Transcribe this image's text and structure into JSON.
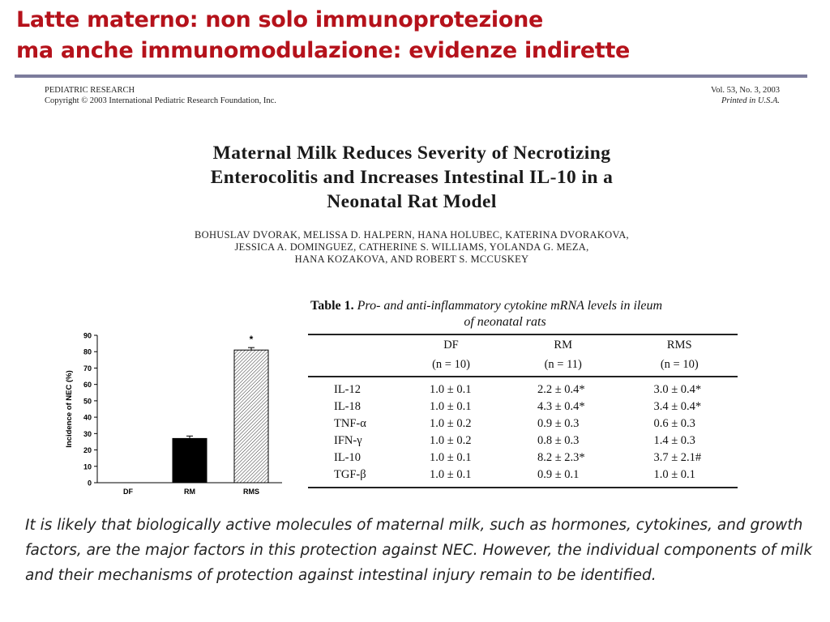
{
  "slide": {
    "title_line1": "Latte materno: non solo immunoprotezione",
    "title_line2": "ma anche immunomodulazione: evidenze indirette"
  },
  "journal": {
    "name": "PEDIATRIC RESEARCH",
    "copyright": "Copyright © 2003 International Pediatric Research Foundation, Inc.",
    "volume": "Vol. 53, No. 3, 2003",
    "printed": "Printed in U.S.A."
  },
  "paper": {
    "title_line1": "Maternal Milk Reduces Severity of Necrotizing",
    "title_line2": "Enterocolitis and Increases Intestinal IL-10 in a",
    "title_line3": "Neonatal Rat Model",
    "authors_line1": "BOHUSLAV DVORAK, MELISSA D. HALPERN, HANA HOLUBEC, KATERINA DVORAKOVA,",
    "authors_line2": "JESSICA A. DOMINGUEZ, CATHERINE S. WILLIAMS, YOLANDA G. MEZA,",
    "authors_line3": "HANA KOZAKOVA, AND ROBERT S. MCCUSKEY"
  },
  "table": {
    "label": "Table 1.",
    "caption_line1": "Pro- and anti-inflammatory cytokine mRNA levels in ileum",
    "caption_line2": "of neonatal rats",
    "columns": [
      {
        "name": "DF",
        "n": "(n = 10)"
      },
      {
        "name": "RM",
        "n": "(n = 11)"
      },
      {
        "name": "RMS",
        "n": "(n = 10)"
      }
    ],
    "rows": [
      {
        "label": "IL-12",
        "df": "1.0 ± 0.1",
        "rm": "2.2 ± 0.4*",
        "rms": "3.0 ± 0.4*"
      },
      {
        "label": "IL-18",
        "df": "1.0 ± 0.1",
        "rm": "4.3 ± 0.4*",
        "rms": "3.4 ± 0.4*"
      },
      {
        "label": "TNF-α",
        "df": "1.0 ± 0.2",
        "rm": "0.9 ± 0.3",
        "rms": "0.6 ± 0.3"
      },
      {
        "label": "IFN-γ",
        "df": "1.0 ± 0.2",
        "rm": "0.8 ± 0.3",
        "rms": "1.4 ± 0.3"
      },
      {
        "label": "IL-10",
        "df": "1.0 ± 0.1",
        "rm": "8.2 ± 2.3*",
        "rms": "3.7 ± 2.1#"
      },
      {
        "label": "TGF-β",
        "df": "1.0 ± 0.1",
        "rm": "0.9 ± 0.1",
        "rms": "1.0 ± 0.1"
      }
    ]
  },
  "chart_data": {
    "type": "bar",
    "title": "",
    "xlabel": "",
    "ylabel": "Incidence of NEC (%)",
    "categories": [
      "DF",
      "RM",
      "RMS"
    ],
    "values": [
      0,
      27,
      81
    ],
    "errors": [
      0,
      1.5,
      1.5
    ],
    "annotations": [
      "",
      "",
      "*"
    ],
    "yticks": [
      0,
      10,
      20,
      30,
      40,
      50,
      60,
      70,
      80,
      90
    ],
    "ylim": [
      0,
      90
    ],
    "grid": false,
    "legend": "none",
    "bar_colors": [
      "#000000",
      "#000000",
      "hatched"
    ]
  },
  "summary": {
    "text": "It is likely that biologically active molecules of maternal milk, such as hormones, cytokines, and growth factors, are the major factors in this protection against NEC. However, the individual components of milk and their mechanisms of protection against intestinal injury remain to be identified."
  }
}
